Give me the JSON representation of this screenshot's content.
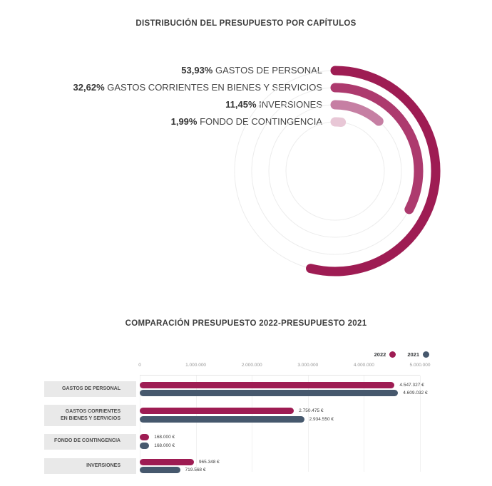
{
  "chart_data": [
    {
      "type": "radial-bar",
      "title": "DISTRIBUCIÓN DEL PRESUPUESTO POR CAPÍTULOS",
      "unit": "%",
      "direction": "clockwise",
      "start_angle_deg": 0,
      "track_color": "#ececec",
      "series": [
        {
          "name": "GASTOS DE PERSONAL",
          "value": 53.93,
          "value_label": "53,93%",
          "color": "#9e1c53"
        },
        {
          "name": "GASTOS CORRIENTES EN BIENES Y SERVICIOS",
          "value": 32.62,
          "value_label": "32,62%",
          "color": "#ad3a6e"
        },
        {
          "name": "INVERSIONES",
          "value": 11.45,
          "value_label": "11,45%",
          "color": "#c67fa3"
        },
        {
          "name": "FONDO DE CONTINGENCIA",
          "value": 1.99,
          "value_label": "1,99%",
          "color": "#e8c7d6"
        }
      ]
    },
    {
      "type": "bar",
      "orientation": "horizontal",
      "title": "COMPARACIÓN PRESUPUESTO 2022-PRESUPUESTO 2021",
      "legend_position": "top-right",
      "grid": true,
      "categories": [
        "GASTOS DE PERSONAL",
        "GASTOS CORRIENTES\nEN BIENES Y SERVICIOS",
        "FONDO DE CONTINGENCIA",
        "INVERSIONES"
      ],
      "series": [
        {
          "name": "2022",
          "color": "#9e1c53",
          "values": [
            4547327,
            2750475,
            168000,
            965348
          ],
          "value_labels": [
            "4.547.327 €",
            "2.750.475 €",
            "168.000 €",
            "965.348 €"
          ]
        },
        {
          "name": "2021",
          "color": "#46586d",
          "values": [
            4609032,
            2934550,
            168000,
            719568
          ],
          "value_labels": [
            "4.609.032 €",
            "2.934.550 €",
            "168.000 €",
            "719.568 €"
          ]
        }
      ],
      "xlim": [
        0,
        5000000
      ],
      "xticks": [
        "0",
        "1.000.000",
        "2.000.000",
        "3.000.000",
        "4.000.000",
        "5.000.000"
      ]
    }
  ]
}
